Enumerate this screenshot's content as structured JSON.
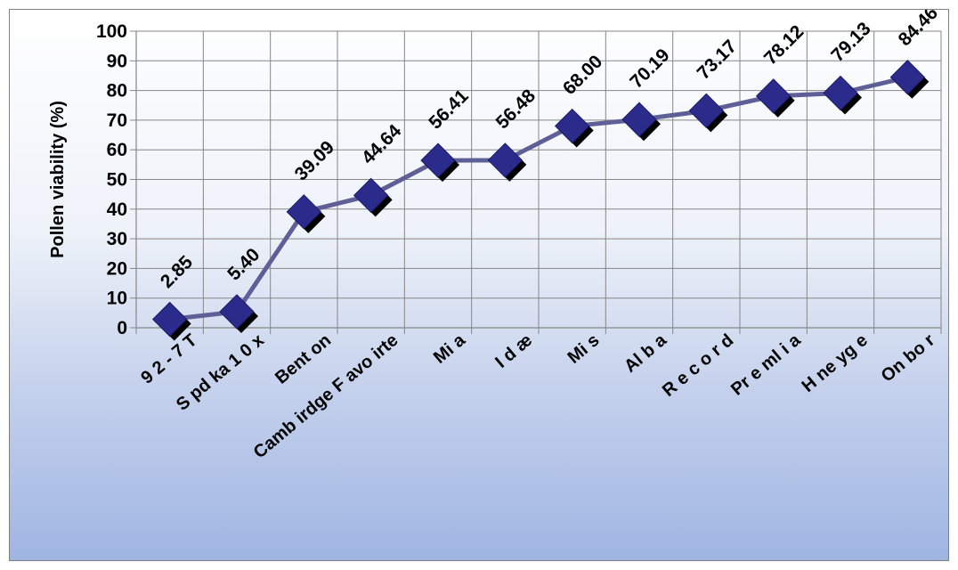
{
  "chart_data": {
    "type": "line",
    "title": "",
    "xlabel": "",
    "ylabel": "Pollen viability (%)",
    "ylim": [
      0,
      100
    ],
    "yticks": [
      0,
      10,
      20,
      30,
      40,
      50,
      60,
      70,
      80,
      90,
      100
    ],
    "grid": true,
    "legend": "none",
    "categories": [
      "9 2 - 7 T",
      "S pd ka 1 0 x",
      "Bent on",
      "Camb irdge F avo irte",
      "Mi a",
      "I d æ",
      "Mi s",
      "Al b a",
      "R e c o r d",
      "Pr e ml i a",
      "H ne yg e",
      "On bo r"
    ],
    "series": [
      {
        "values": [
          2.85,
          5.4,
          39.09,
          44.64,
          56.41,
          56.48,
          68.0,
          70.19,
          73.17,
          78.12,
          79.13,
          84.46
        ],
        "labels": [
          "2.85",
          "5.40",
          "39.09",
          "44.64",
          "56.41",
          "56.48",
          "68.00",
          "70.19",
          "73.17",
          "78.12",
          "79.13",
          "84.46"
        ]
      }
    ],
    "colors": {
      "line": "#5f5f97",
      "marker": "#2b2b8c",
      "marker_shadow": "#000000",
      "grid": "#868686",
      "axis": "#868686"
    }
  }
}
